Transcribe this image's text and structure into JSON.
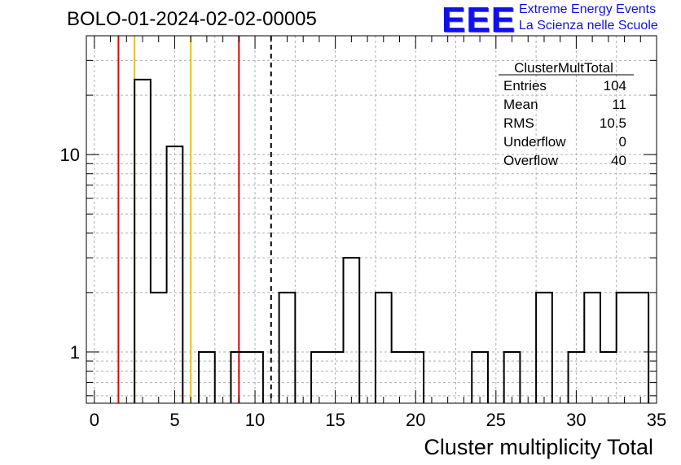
{
  "header": {
    "title": "BOLO-01-2024-02-02-00005",
    "logo_mark": "EEE",
    "logo_line1": "Extreme Energy Events",
    "logo_line2": "La Scienza nelle Scuole"
  },
  "stats_box": {
    "name": "ClusterMultTotal",
    "rows": [
      {
        "label": "Entries",
        "value": "104"
      },
      {
        "label": "Mean",
        "value": "11"
      },
      {
        "label": "RMS",
        "value": "10.5"
      },
      {
        "label": "Underflow",
        "value": "0"
      },
      {
        "label": "Overflow",
        "value": "40"
      }
    ]
  },
  "chart_data": {
    "type": "bar",
    "histogram": true,
    "xlabel": "Cluster multiplicity Total",
    "ylabel": "",
    "xlim": [
      -0.5,
      35
    ],
    "ylim": [
      0.55,
      40
    ],
    "log_y": true,
    "grid": true,
    "bin_width": 1,
    "bins": [
      {
        "low": 2.5,
        "high": 3.5,
        "count": 24
      },
      {
        "low": 3.5,
        "high": 4.5,
        "count": 2
      },
      {
        "low": 4.5,
        "high": 5.5,
        "count": 11
      },
      {
        "low": 6.5,
        "high": 7.5,
        "count": 1
      },
      {
        "low": 8.5,
        "high": 9.5,
        "count": 1
      },
      {
        "low": 9.5,
        "high": 10.5,
        "count": 1
      },
      {
        "low": 11.5,
        "high": 12.5,
        "count": 2
      },
      {
        "low": 13.5,
        "high": 14.5,
        "count": 1
      },
      {
        "low": 14.5,
        "high": 15.5,
        "count": 1
      },
      {
        "low": 15.5,
        "high": 16.5,
        "count": 3
      },
      {
        "low": 17.5,
        "high": 18.5,
        "count": 2
      },
      {
        "low": 18.5,
        "high": 19.5,
        "count": 1
      },
      {
        "low": 19.5,
        "high": 20.5,
        "count": 1
      },
      {
        "low": 23.5,
        "high": 24.5,
        "count": 1
      },
      {
        "low": 25.5,
        "high": 26.5,
        "count": 1
      },
      {
        "low": 27.5,
        "high": 28.5,
        "count": 2
      },
      {
        "low": 29.5,
        "high": 30.5,
        "count": 1
      },
      {
        "low": 30.5,
        "high": 31.5,
        "count": 2
      },
      {
        "low": 31.5,
        "high": 32.5,
        "count": 1
      },
      {
        "low": 32.5,
        "high": 33.5,
        "count": 2
      },
      {
        "low": 33.5,
        "high": 34.5,
        "count": 2
      }
    ],
    "x_ticks": [
      0,
      5,
      10,
      15,
      20,
      25,
      30,
      35
    ],
    "y_ticks": [
      1,
      10
    ],
    "vertical_lines": [
      {
        "x": 1.5,
        "color": "#e00000",
        "style": "solid"
      },
      {
        "x": 2.5,
        "color": "#f0c000",
        "style": "solid"
      },
      {
        "x": 6,
        "color": "#f0c000",
        "style": "solid"
      },
      {
        "x": 9,
        "color": "#e00000",
        "style": "solid"
      },
      {
        "x": 11,
        "color": "#000000",
        "style": "dashed"
      }
    ],
    "colors": {
      "histogram": "#000000",
      "grid": "#b0b0b0",
      "logo": "#1010ee"
    }
  }
}
